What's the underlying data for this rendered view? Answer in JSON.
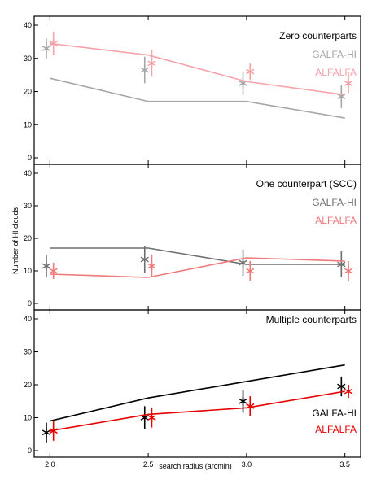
{
  "chart_data": [
    {
      "type": "line",
      "title": "Zero counterparts",
      "x": [
        2.0,
        2.5,
        3.0,
        3.5
      ],
      "ylim": [
        0,
        40
      ],
      "yticks": [
        "0",
        "10",
        "20",
        "30",
        "40"
      ],
      "series": [
        {
          "name": "GALFA-HI",
          "color": "#a6a6a6",
          "line": [
            24,
            17,
            17,
            12
          ],
          "points": [
            33,
            26.5,
            22.5,
            18.5
          ],
          "errors": [
            3,
            4,
            3.5,
            3.5
          ],
          "point_x_offset": -0.018
        },
        {
          "name": "ALFALFA",
          "color": "#f4a3a8",
          "line": [
            34.5,
            31,
            23,
            19
          ],
          "points": [
            34.5,
            28.5,
            26,
            22.5
          ],
          "errors": [
            3.5,
            4,
            2.5,
            3
          ],
          "point_x_offset": 0.018
        }
      ]
    },
    {
      "type": "line",
      "title": "One counterpart (SCC)",
      "x": [
        2.0,
        2.5,
        3.0,
        3.5
      ],
      "ylim": [
        0,
        40
      ],
      "yticks": [
        "0",
        "10",
        "20",
        "30",
        "40"
      ],
      "series": [
        {
          "name": "GALFA-HI",
          "color": "#6e6e6e",
          "line": [
            17,
            17,
            12,
            12
          ],
          "points": [
            11.5,
            13.5,
            12.5,
            12
          ],
          "errors": [
            3.5,
            4,
            4,
            4
          ],
          "point_x_offset": -0.018
        },
        {
          "name": "ALFALFA",
          "color": "#f07878",
          "line": [
            9,
            8,
            14,
            13
          ],
          "points": [
            10,
            11.5,
            10,
            10
          ],
          "errors": [
            2.5,
            3.5,
            3,
            3
          ],
          "point_x_offset": 0.018
        }
      ]
    },
    {
      "type": "line",
      "title": "Multiple counterparts",
      "x": [
        2.0,
        2.5,
        3.0,
        3.5
      ],
      "ylim": [
        0,
        40
      ],
      "yticks": [
        "0",
        "10",
        "20",
        "30",
        "40"
      ],
      "xticks": [
        "2.0",
        "2.5",
        "3.0",
        "3.5"
      ],
      "legend_position": "bottom-right",
      "series": [
        {
          "name": "GALFA-HI",
          "color": "#000000",
          "line": [
            9,
            16,
            21,
            26
          ],
          "points": [
            5.5,
            10,
            15,
            19.5
          ],
          "errors": [
            3,
            3.5,
            3.5,
            3
          ],
          "point_x_offset": -0.018
        },
        {
          "name": "ALFALFA",
          "color": "#e60000",
          "line": [
            6,
            11,
            13,
            18
          ],
          "points": [
            6,
            10,
            13.5,
            18
          ],
          "errors": [
            3,
            3,
            3,
            2
          ],
          "point_x_offset": 0.018
        }
      ]
    }
  ],
  "ylabel": "Number of HI clouds",
  "xlabel": "search radius (arcmin)"
}
